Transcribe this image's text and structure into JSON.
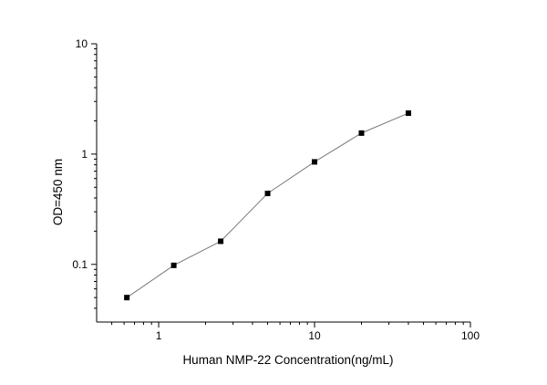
{
  "chart_data": {
    "type": "scatter",
    "title": "",
    "xlabel": "Human NMP-22 Concentration(ng/mL)",
    "ylabel": "OD=450 nm",
    "xscale": "log",
    "yscale": "log",
    "xlim": [
      0.4,
      100
    ],
    "ylim": [
      0.03,
      10
    ],
    "x_ticks": [
      1,
      10,
      100
    ],
    "x_tick_labels": [
      "1",
      "10",
      "100"
    ],
    "y_ticks": [
      0.1,
      1,
      10
    ],
    "y_tick_labels": [
      "0.1",
      "1",
      "10"
    ],
    "grid": false,
    "legend": "none",
    "series": [
      {
        "marker": "square",
        "line": "connected",
        "x": [
          0.625,
          1.25,
          2.5,
          5,
          10,
          20,
          40
        ],
        "y": [
          0.05,
          0.098,
          0.162,
          0.44,
          0.85,
          1.55,
          2.35
        ]
      }
    ],
    "colors": {
      "marker": "#000000",
      "line": "#7a7a7a",
      "axis": "#000000"
    }
  }
}
